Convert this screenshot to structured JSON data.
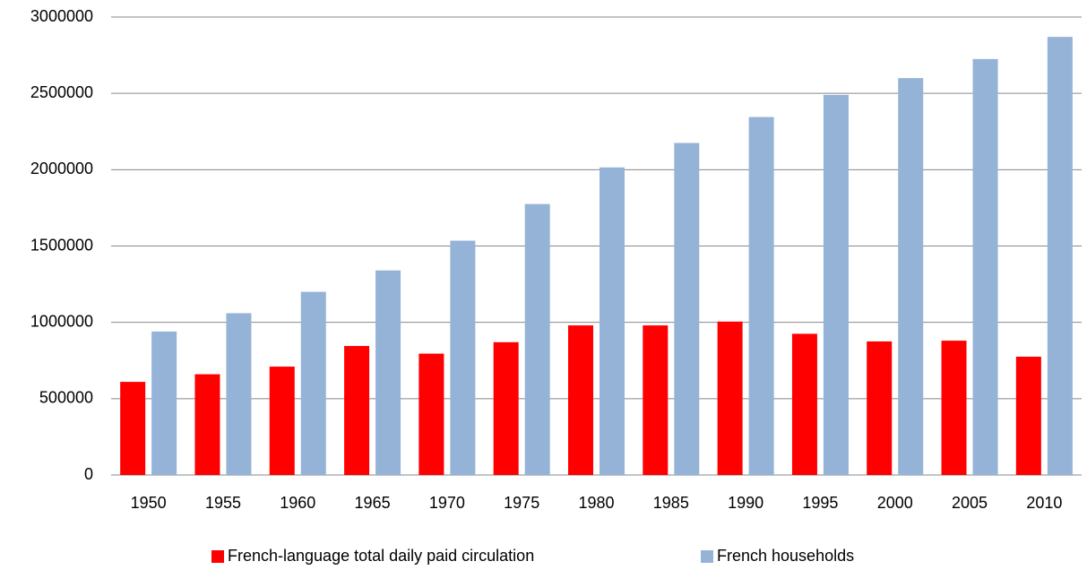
{
  "chart_data": {
    "type": "bar",
    "categories": [
      "1950",
      "1955",
      "1960",
      "1965",
      "1970",
      "1975",
      "1980",
      "1985",
      "1990",
      "1995",
      "2000",
      "2005",
      "2010"
    ],
    "series": [
      {
        "name": "French-language total daily paid circulation",
        "color": "#ff0000",
        "values": [
          610000,
          660000,
          710000,
          845000,
          795000,
          870000,
          980000,
          980000,
          1005000,
          925000,
          875000,
          880000,
          775000
        ]
      },
      {
        "name": "French households",
        "color": "#95b3d7",
        "values": [
          940000,
          1060000,
          1200000,
          1340000,
          1535000,
          1775000,
          2015000,
          2175000,
          2345000,
          2490000,
          2600000,
          2725000,
          2870000
        ]
      }
    ],
    "ylim": [
      0,
      3000000
    ],
    "yticks": [
      0,
      500000,
      1000000,
      1500000,
      2000000,
      2500000,
      3000000
    ],
    "grid": true,
    "legend": "bottom"
  }
}
